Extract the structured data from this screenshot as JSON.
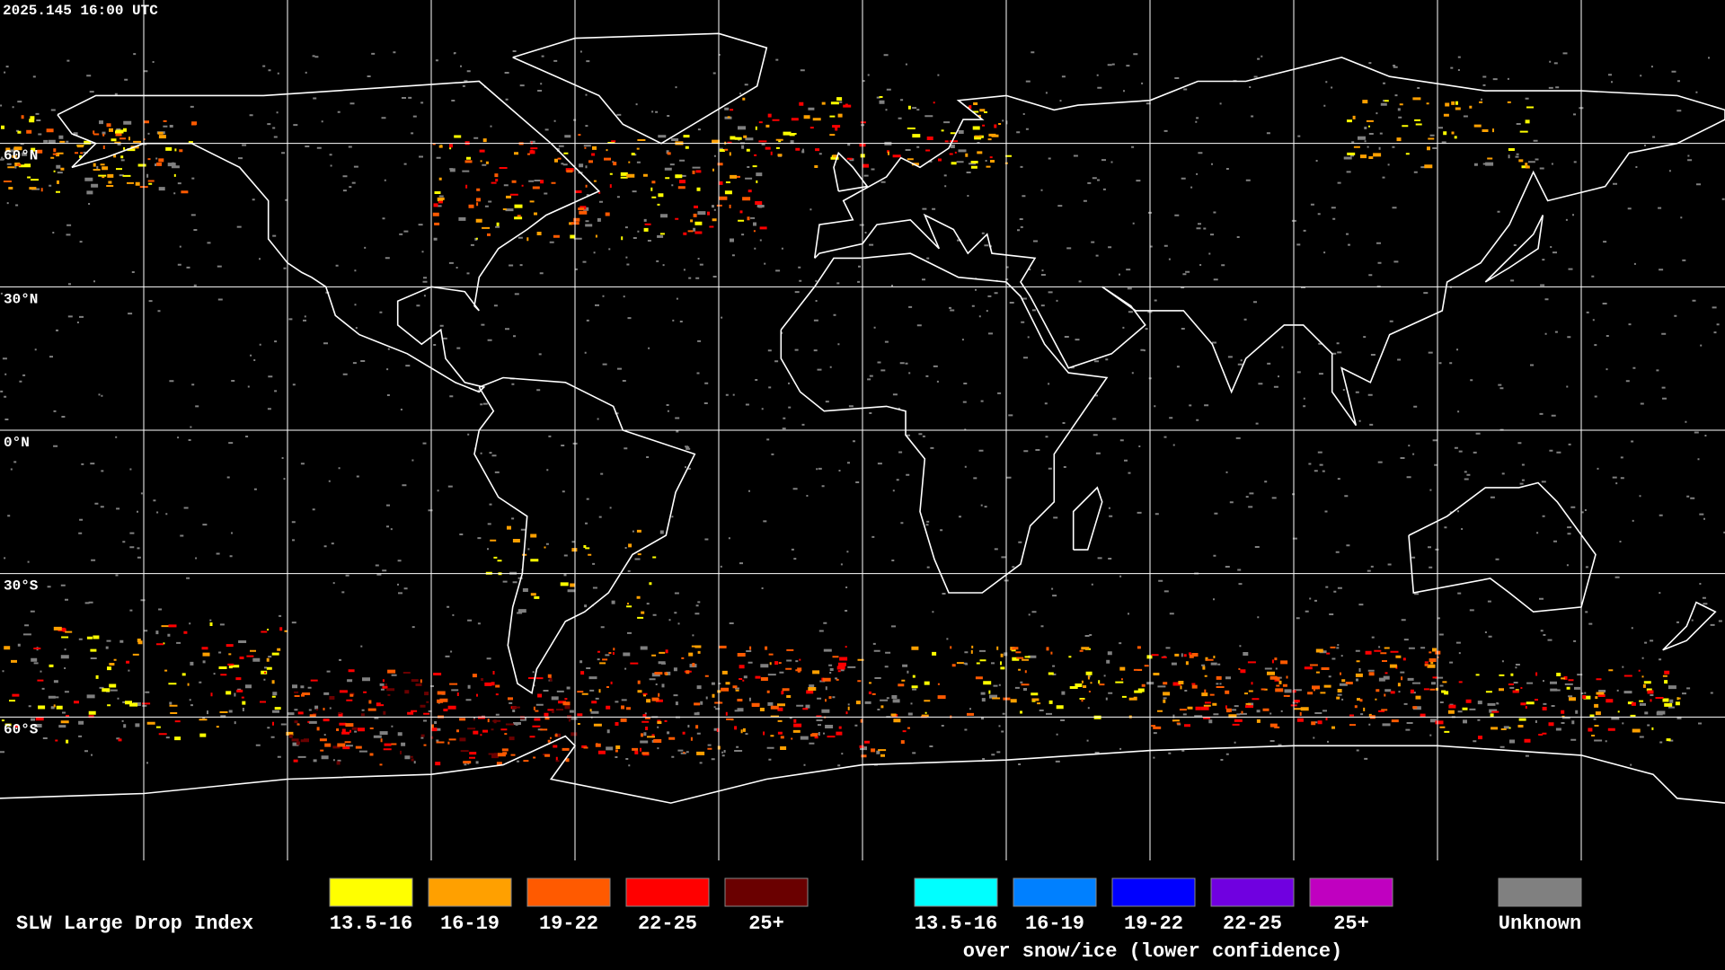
{
  "timestamp": "2025.145 16:00 UTC",
  "latitude_labels": [
    "60°N",
    "30°N",
    "0°N",
    "30°S",
    "60°S"
  ],
  "legend": {
    "title": "SLW Large Drop Index",
    "items": [
      {
        "label": "13.5-16",
        "color": "#ffff00"
      },
      {
        "label": "16-19",
        "color": "#ffa000"
      },
      {
        "label": "19-22",
        "color": "#ff5a00"
      },
      {
        "label": "22-25",
        "color": "#ff0000"
      },
      {
        "label": "25+",
        "color": "#6a0000"
      }
    ],
    "snow_ice_items": [
      {
        "label": "13.5-16",
        "color": "#00ffff"
      },
      {
        "label": "16-19",
        "color": "#0080ff"
      },
      {
        "label": "19-22",
        "color": "#0000ff"
      },
      {
        "label": "22-25",
        "color": "#7000e0"
      },
      {
        "label": "25+",
        "color": "#c000c0"
      }
    ],
    "snow_ice_caption": "over snow/ice (lower confidence)",
    "unknown": {
      "label": "Unknown",
      "color": "#808080"
    }
  }
}
